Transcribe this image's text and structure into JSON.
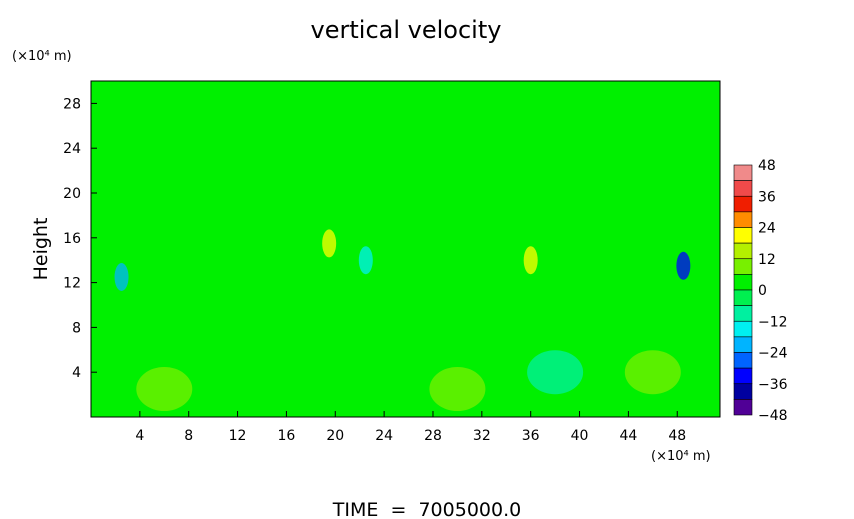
{
  "chart_data": {
    "type": "heatmap",
    "title": "vertical velocity",
    "ylabel": "Height",
    "yunit": "(×10⁴ m)",
    "xunit": "(×10⁴ m)",
    "footer": "TIME  =  7005000.0",
    "xlim": [
      0,
      51.5
    ],
    "ylim": [
      0,
      30
    ],
    "x_ticks": [
      4,
      8,
      12,
      16,
      20,
      24,
      28,
      32,
      36,
      40,
      44,
      48
    ],
    "y_ticks": [
      4,
      8,
      12,
      16,
      20,
      24,
      28
    ],
    "colorbar": {
      "range": [
        -48,
        48
      ],
      "ticks": [
        48,
        36,
        24,
        12,
        0,
        -12,
        -24,
        -36,
        -48
      ],
      "levels": [
        {
          "from": 42,
          "to": 48,
          "color": "#f08a8a"
        },
        {
          "from": 36,
          "to": 42,
          "color": "#f04a4a"
        },
        {
          "from": 30,
          "to": 36,
          "color": "#f01e00"
        },
        {
          "from": 24,
          "to": 30,
          "color": "#ff8c00"
        },
        {
          "from": 18,
          "to": 24,
          "color": "#ffff00"
        },
        {
          "from": 12,
          "to": 18,
          "color": "#b4f000"
        },
        {
          "from": 6,
          "to": 12,
          "color": "#78f000"
        },
        {
          "from": 0,
          "to": 6,
          "color": "#00f000"
        },
        {
          "from": -6,
          "to": 0,
          "color": "#00f050"
        },
        {
          "from": -12,
          "to": -6,
          "color": "#00f0a0"
        },
        {
          "from": -18,
          "to": -12,
          "color": "#00f0f0"
        },
        {
          "from": -24,
          "to": -18,
          "color": "#00b4ff"
        },
        {
          "from": -30,
          "to": -24,
          "color": "#0064ff"
        },
        {
          "from": -36,
          "to": -30,
          "color": "#0000ff"
        },
        {
          "from": -42,
          "to": -36,
          "color": "#0000a0"
        },
        {
          "from": -48,
          "to": -42,
          "color": "#500096"
        }
      ]
    },
    "features": [
      {
        "x": 19.5,
        "y": 15.5,
        "value": 20
      },
      {
        "x": 36,
        "y": 14,
        "value": 18
      },
      {
        "x": 2.5,
        "y": 12.5,
        "value": -20
      },
      {
        "x": 48.5,
        "y": 13.5,
        "value": -32
      },
      {
        "x": 22.5,
        "y": 14,
        "value": -18
      },
      {
        "x": 30,
        "y": 2.5,
        "value": 8
      },
      {
        "x": 46,
        "y": 4,
        "value": 9
      },
      {
        "x": 6,
        "y": 2.5,
        "value": 7
      },
      {
        "x": 38,
        "y": 4,
        "value": -8
      }
    ]
  }
}
